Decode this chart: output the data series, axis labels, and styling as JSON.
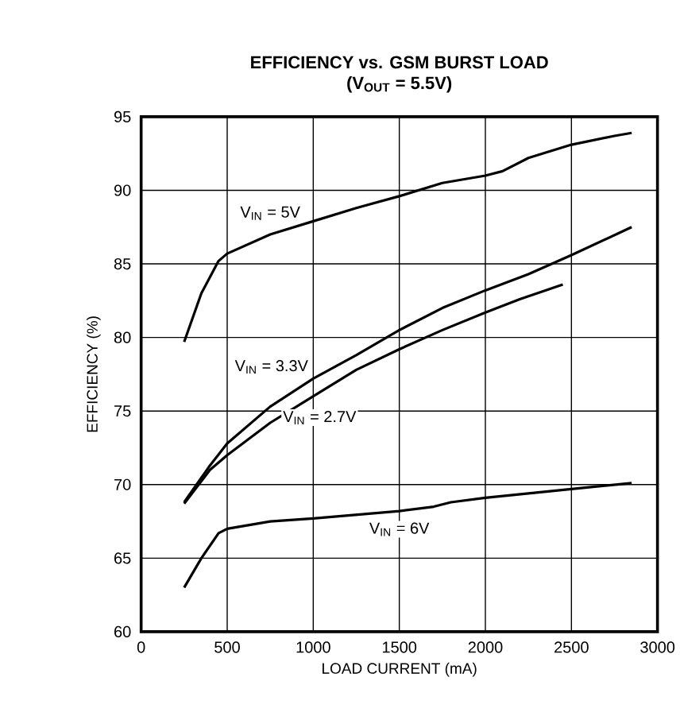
{
  "chart_data": {
    "type": "line",
    "title": "EFFICIENCY vs. GSM BURST LOAD",
    "subtitle": "(V$_{OUT}$ = 5.5V)",
    "xlabel": "LOAD CURRENT (mA)",
    "ylabel": "EFFICIENCY (%)",
    "xlim": [
      0,
      3000
    ],
    "ylim": [
      60,
      95
    ],
    "xticks": [
      0,
      500,
      1000,
      1500,
      2000,
      2500,
      3000
    ],
    "yticks": [
      60,
      65,
      70,
      75,
      80,
      85,
      90,
      95
    ],
    "grid": true,
    "line_style": "solid",
    "marker": "none",
    "series": [
      {
        "name": "V$_{IN}$ = 5V",
        "color": "#000000",
        "x": [
          250,
          350,
          450,
          500,
          750,
          1000,
          1250,
          1500,
          1750,
          2000,
          2100,
          2250,
          2500,
          2750,
          2850
        ],
        "values": [
          79.7,
          83,
          85.2,
          85.7,
          87,
          87.9,
          88.8,
          89.6,
          90.5,
          91,
          91.3,
          92.2,
          93.1,
          93.7,
          93.9
        ]
      },
      {
        "name": "V$_{IN}$ = 3.3V",
        "color": "#000000",
        "x": [
          250,
          400,
          500,
          750,
          1000,
          1250,
          1500,
          1750,
          2000,
          2250,
          2500,
          2850
        ],
        "values": [
          68.8,
          71.3,
          72.8,
          75.3,
          77.2,
          78.8,
          80.5,
          82,
          83.2,
          84.3,
          85.6,
          87.5
        ]
      },
      {
        "name": "V$_{IN}$ = 2.7V",
        "color": "#000000",
        "x": [
          250,
          400,
          500,
          750,
          1000,
          1250,
          1500,
          1750,
          2000,
          2200,
          2450
        ],
        "values": [
          68.7,
          71,
          72,
          74.2,
          76,
          77.8,
          79.2,
          80.5,
          81.7,
          82.6,
          83.6
        ]
      },
      {
        "name": "V$_{IN}$ = 6V",
        "color": "#000000",
        "x": [
          250,
          350,
          450,
          500,
          750,
          1000,
          1500,
          1700,
          1800,
          2000,
          2500,
          2850
        ],
        "values": [
          63,
          65,
          66.7,
          67,
          67.5,
          67.7,
          68.2,
          68.5,
          68.8,
          69.1,
          69.7,
          70.1
        ]
      }
    ]
  }
}
